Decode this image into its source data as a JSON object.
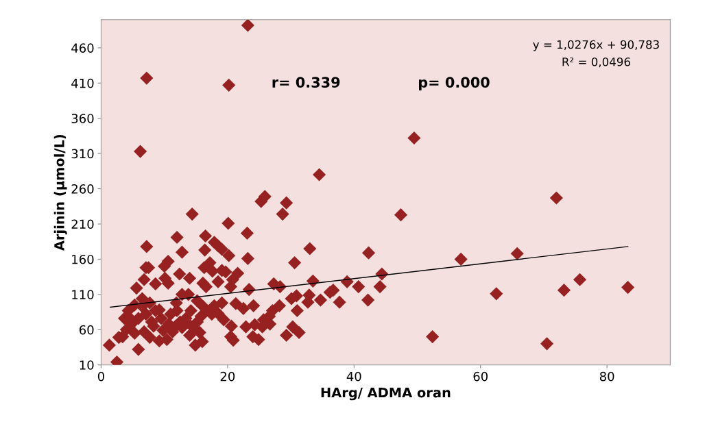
{
  "chart_data": {
    "type": "scatter",
    "xlabel": "HArg/ ADMA oran",
    "ylabel": "Arjinin (µmol/L)",
    "xlim": [
      0,
      90
    ],
    "ylim": [
      10,
      500
    ],
    "xticks": [
      0,
      20,
      40,
      60,
      80
    ],
    "yticks": [
      10,
      60,
      110,
      160,
      210,
      260,
      310,
      360,
      410,
      460
    ],
    "grid": false,
    "legend": false,
    "marker": "diamond",
    "annotations": [
      "y = 1,0276x + 90,783",
      "R² = 0,0496",
      "r= 0.339",
      "p= 0.000"
    ],
    "series": [
      {
        "color": "#972020",
        "x": [
          23.2,
          7.2,
          20.2,
          6.2,
          49.5,
          34.5,
          72.0,
          47.4,
          14.4,
          20.1,
          25.3,
          25.9,
          29.3,
          28.7,
          23.1,
          12.0,
          7.2,
          16.5,
          12.8,
          17.9,
          18.5,
          19.1,
          16.4,
          20.2,
          23.2,
          33.0,
          30.6,
          42.3,
          56.9,
          65.8,
          75.7,
          73.2,
          62.5,
          83.3,
          52.4,
          70.5,
          44.4,
          44.1,
          42.2,
          40.7,
          38.9,
          37.7,
          36.7,
          36.2,
          34.7,
          33.5,
          32.9,
          32.7,
          30.9,
          30.1,
          31.0,
          30.3,
          31.3,
          29.3,
          28.2,
          28.3,
          27.3,
          27.1,
          26.6,
          25.7,
          26.7,
          25.5,
          24.9,
          24.0,
          24.3,
          22.9,
          24.1,
          22.5,
          21.3,
          23.4,
          21.6,
          20.8,
          20.5,
          19.7,
          19.1,
          18.5,
          19.1,
          19.4,
          20.6,
          20.5,
          20.9,
          17.2,
          16.3,
          17.6,
          16.1,
          16.6,
          17.9,
          16.7,
          15.8,
          15.2,
          15.6,
          16.0,
          14.9,
          14.0,
          13.8,
          12.8,
          14.2,
          13.4,
          12.4,
          12.0,
          11.8,
          12.8,
          14.0,
          10.6,
          10.0,
          10.6,
          10.1,
          8.6,
          7.1,
          7.5,
          6.8,
          5.6,
          6.5,
          5.3,
          4.3,
          3.7,
          4.8,
          3.4,
          2.8,
          5.9,
          1.3,
          2.5,
          8.6,
          9.5,
          9.2,
          10.4,
          7.7,
          6.8,
          8.0,
          7.1,
          5.9,
          5.3,
          10.7,
          9.8,
          11.3,
          9.2,
          7.7,
          11.0,
          12.5,
          13.6,
          11.9,
          15.2,
          16.1,
          17.5,
          18.5,
          14.6,
          6.5,
          8.3,
          4.0,
          4.6
        ],
        "values": [
          492,
          417,
          407,
          313,
          332,
          280,
          247,
          223,
          224,
          211,
          242,
          249,
          240,
          224,
          197,
          191,
          178,
          193,
          170,
          184,
          179,
          174,
          173,
          165,
          161,
          175,
          155,
          169,
          160,
          168,
          131,
          116,
          111,
          120,
          50,
          40,
          139,
          121,
          102,
          121,
          128,
          99,
          116,
          113,
          102,
          129,
          109,
          99,
          108,
          104,
          87,
          64,
          56,
          52,
          94,
          121,
          125,
          87,
          79,
          74,
          68,
          64,
          46,
          50,
          67,
          64,
          94,
          90,
          97,
          117,
          140,
          131,
          121,
          142,
          144,
          128,
          98,
          74,
          65,
          50,
          45,
          155,
          148,
          143,
          126,
          121,
          94,
          87,
          79,
          71,
          56,
          43,
          38,
          133,
          110,
          110,
          87,
          76,
          139,
          87,
          65,
          63,
          52,
          157,
          150,
          126,
          133,
          125,
          148,
          148,
          131,
          119,
          104,
          95,
          87,
          76,
          68,
          50,
          49,
          32,
          38,
          14,
          87,
          76,
          44,
          46,
          49,
          57,
          71,
          82,
          76,
          55,
          68,
          59,
          57,
          88,
          98,
          82,
          71,
          70,
          98,
          101,
          93,
          82,
          83,
          63,
          93,
          65,
          60,
          76
        ]
      },
      {
        "type": "line",
        "color": "#000000",
        "marker": "none",
        "x": [
          1.45,
          83.3
        ],
        "values": [
          92,
          178
        ]
      }
    ]
  }
}
